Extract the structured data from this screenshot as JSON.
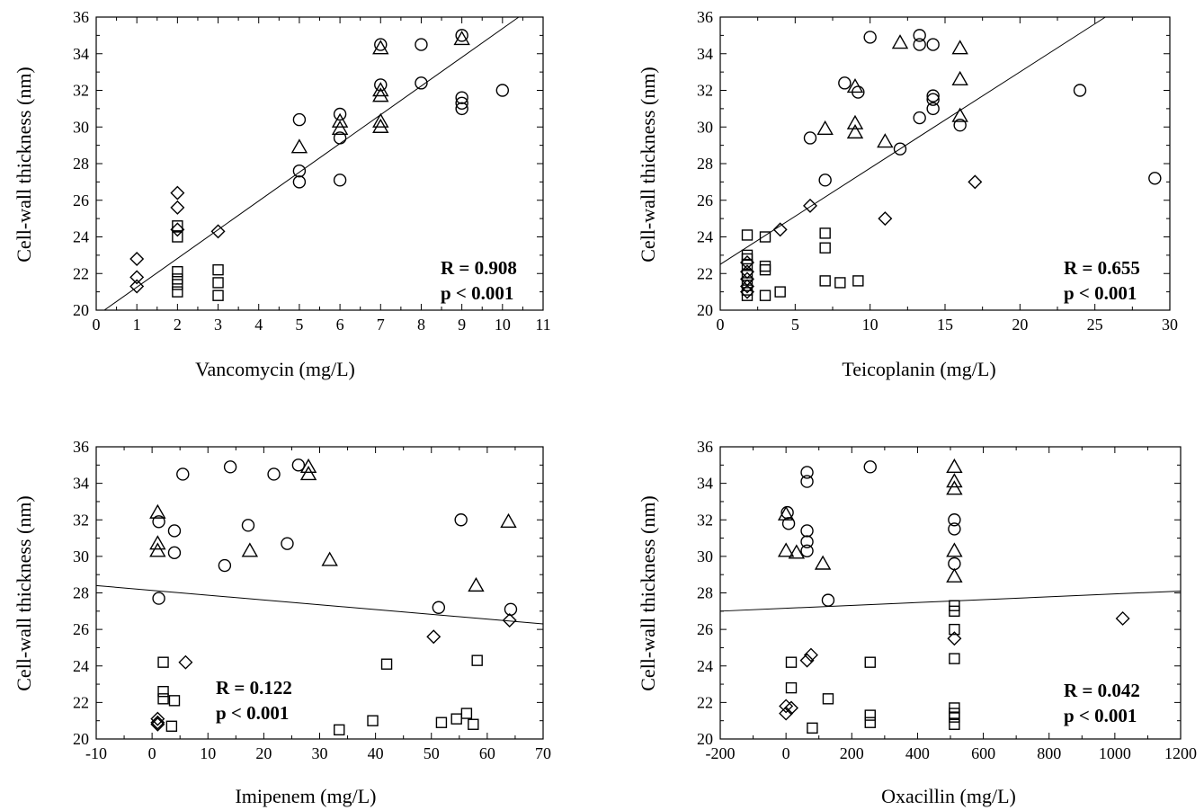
{
  "chart_data": [
    {
      "type": "scatter",
      "xlabel": "Vancomycin (mg/L)",
      "ylabel": "Cell-wall  thickness (nm)",
      "xlim": [
        0,
        11
      ],
      "ylim": [
        20,
        36
      ],
      "xticks": [
        "0",
        "1",
        "2",
        "3",
        "4",
        "5",
        "6",
        "7",
        "8",
        "9",
        "10",
        "11"
      ],
      "yticks": [
        "20",
        "22",
        "24",
        "26",
        "28",
        "30",
        "32",
        "34",
        "36"
      ],
      "stats": [
        "R = 0.908",
        "p < 0.001"
      ],
      "fit_line": [
        [
          0.2,
          20.0
        ],
        [
          10.4,
          36.0
        ]
      ],
      "series": [
        {
          "marker": "diamond",
          "points": [
            [
              1,
              22.8
            ],
            [
              1,
              21.8
            ],
            [
              1,
              21.3
            ],
            [
              2,
              26.4
            ],
            [
              2,
              25.6
            ],
            [
              2,
              24.4
            ],
            [
              3,
              24.3
            ]
          ]
        },
        {
          "marker": "square",
          "points": [
            [
              2,
              24.6
            ],
            [
              2,
              24.0
            ],
            [
              2,
              22.1
            ],
            [
              2,
              21.7
            ],
            [
              2,
              21.4
            ],
            [
              2,
              21.0
            ],
            [
              3,
              22.2
            ],
            [
              3,
              21.5
            ],
            [
              3,
              20.8
            ]
          ]
        },
        {
          "marker": "circle",
          "points": [
            [
              5,
              30.4
            ],
            [
              5,
              27.6
            ],
            [
              5,
              27.0
            ],
            [
              6,
              30.7
            ],
            [
              6,
              29.4
            ],
            [
              6,
              27.1
            ],
            [
              7,
              34.5
            ],
            [
              7,
              32.3
            ],
            [
              8,
              34.5
            ],
            [
              8,
              32.4
            ],
            [
              9,
              35.0
            ],
            [
              9,
              31.6
            ],
            [
              9,
              31.3
            ],
            [
              9,
              31.0
            ],
            [
              10,
              32.0
            ]
          ]
        },
        {
          "marker": "triangle",
          "points": [
            [
              5,
              28.9
            ],
            [
              6,
              30.3
            ],
            [
              6,
              29.9
            ],
            [
              7,
              34.3
            ],
            [
              7,
              32.0
            ],
            [
              7,
              31.7
            ],
            [
              7,
              30.3
            ],
            [
              7,
              30.0
            ],
            [
              9,
              34.8
            ]
          ]
        }
      ]
    },
    {
      "type": "scatter",
      "xlabel": "Teicoplanin (mg/L)",
      "ylabel": "Cell-wall  thickness (nm)",
      "xlim": [
        0,
        30
      ],
      "ylim": [
        20,
        36
      ],
      "xticks": [
        "0",
        "5",
        "10",
        "15",
        "20",
        "25",
        "30"
      ],
      "yticks": [
        "20",
        "22",
        "24",
        "26",
        "28",
        "30",
        "32",
        "34",
        "36"
      ],
      "stats": [
        "R = 0.655",
        "p  < 0.001"
      ],
      "fit_line": [
        [
          0,
          22.5
        ],
        [
          25.7,
          36.0
        ]
      ],
      "series": [
        {
          "marker": "diamond",
          "points": [
            [
              1.8,
              22.6
            ],
            [
              1.8,
              22.1
            ],
            [
              1.8,
              21.7
            ],
            [
              1.8,
              21.3
            ],
            [
              1.8,
              21.0
            ],
            [
              4,
              24.4
            ],
            [
              6,
              25.7
            ],
            [
              11,
              25.0
            ],
            [
              17,
              27.0
            ]
          ]
        },
        {
          "marker": "square",
          "points": [
            [
              1.8,
              24.1
            ],
            [
              1.8,
              23.0
            ],
            [
              1.8,
              22.8
            ],
            [
              1.8,
              22.5
            ],
            [
              1.8,
              21.9
            ],
            [
              1.8,
              21.5
            ],
            [
              1.8,
              21.1
            ],
            [
              1.8,
              20.8
            ],
            [
              3,
              24.0
            ],
            [
              3,
              22.4
            ],
            [
              3,
              22.2
            ],
            [
              3,
              20.8
            ],
            [
              4,
              21.0
            ],
            [
              7,
              24.2
            ],
            [
              7,
              23.4
            ],
            [
              7,
              21.6
            ],
            [
              8,
              21.5
            ],
            [
              9.2,
              21.6
            ]
          ]
        },
        {
          "marker": "circle",
          "points": [
            [
              6,
              29.4
            ],
            [
              7,
              27.1
            ],
            [
              8.3,
              32.4
            ],
            [
              9.2,
              31.9
            ],
            [
              10,
              34.9
            ],
            [
              12,
              28.8
            ],
            [
              13.3,
              35.0
            ],
            [
              13.3,
              34.5
            ],
            [
              13.3,
              30.5
            ],
            [
              14.2,
              34.5
            ],
            [
              14.2,
              31.7
            ],
            [
              14.2,
              31.5
            ],
            [
              14.2,
              31.0
            ],
            [
              16,
              30.1
            ],
            [
              24,
              32.0
            ],
            [
              29,
              27.2
            ]
          ]
        },
        {
          "marker": "triangle",
          "points": [
            [
              7,
              29.9
            ],
            [
              9,
              32.2
            ],
            [
              9,
              30.2
            ],
            [
              9,
              29.7
            ],
            [
              11,
              29.2
            ],
            [
              12,
              34.6
            ],
            [
              16,
              34.3
            ],
            [
              16,
              32.6
            ],
            [
              16,
              30.6
            ]
          ]
        }
      ]
    },
    {
      "type": "scatter",
      "xlabel": "Imipenem (mg/L)",
      "ylabel": "Cell-wall  thickness (nm)",
      "xlim": [
        -10,
        70
      ],
      "ylim": [
        20,
        36
      ],
      "xticks": [
        "-10",
        "0",
        "10",
        "20",
        "30",
        "40",
        "50",
        "60",
        "70"
      ],
      "yticks": [
        "20",
        "22",
        "24",
        "26",
        "28",
        "30",
        "32",
        "34",
        "36"
      ],
      "stats": [
        "R = 0.122",
        "p < 0.001"
      ],
      "fit_line": [
        [
          -10,
          28.4
        ],
        [
          70,
          26.3
        ]
      ],
      "series": [
        {
          "marker": "diamond",
          "points": [
            [
              1,
              21.1
            ],
            [
              1,
              20.9
            ],
            [
              1,
              20.8
            ],
            [
              6,
              24.2
            ],
            [
              50.4,
              25.6
            ],
            [
              64,
              26.5
            ]
          ]
        },
        {
          "marker": "square",
          "points": [
            [
              2,
              24.2
            ],
            [
              2,
              22.6
            ],
            [
              2,
              22.2
            ],
            [
              4,
              22.1
            ],
            [
              3.5,
              20.7
            ],
            [
              33.5,
              20.5
            ],
            [
              39.5,
              21.0
            ],
            [
              42,
              24.1
            ],
            [
              51.8,
              20.9
            ],
            [
              54.5,
              21.1
            ],
            [
              56.3,
              21.4
            ],
            [
              57.5,
              20.8
            ],
            [
              58.2,
              24.3
            ]
          ]
        },
        {
          "marker": "circle",
          "points": [
            [
              1.2,
              31.9
            ],
            [
              1.2,
              27.7
            ],
            [
              4,
              31.4
            ],
            [
              4,
              30.2
            ],
            [
              5.5,
              34.5
            ],
            [
              13,
              29.5
            ],
            [
              14,
              34.9
            ],
            [
              17.2,
              31.7
            ],
            [
              21.8,
              34.5
            ],
            [
              24.2,
              30.7
            ],
            [
              26.2,
              35.0
            ],
            [
              51.3,
              27.2
            ],
            [
              55.3,
              32.0
            ],
            [
              64.2,
              27.1
            ]
          ]
        },
        {
          "marker": "triangle",
          "points": [
            [
              1,
              32.4
            ],
            [
              1,
              30.7
            ],
            [
              1,
              30.3
            ],
            [
              17.5,
              30.3
            ],
            [
              28,
              34.9
            ],
            [
              28,
              34.5
            ],
            [
              31.8,
              29.8
            ],
            [
              58,
              28.4
            ],
            [
              63.8,
              31.9
            ]
          ]
        }
      ]
    },
    {
      "type": "scatter",
      "xlabel": "Oxacillin (mg/L)",
      "ylabel": "Cell-wall  thickness (nm)",
      "xlim": [
        -200,
        1200
      ],
      "ylim": [
        20,
        36
      ],
      "xticks": [
        "-200",
        "0",
        "200",
        "400",
        "600",
        "800",
        "1000",
        "1200"
      ],
      "yticks": [
        "20",
        "22",
        "24",
        "26",
        "28",
        "30",
        "32",
        "34",
        "36"
      ],
      "stats": [
        "R = 0.042",
        "p < 0.001"
      ],
      "fit_line": [
        [
          -200,
          27.0
        ],
        [
          1200,
          28.1
        ]
      ],
      "series": [
        {
          "marker": "diamond",
          "points": [
            [
              0,
              21.8
            ],
            [
              0,
              21.4
            ],
            [
              16,
              21.7
            ],
            [
              64,
              24.3
            ],
            [
              76,
              24.6
            ],
            [
              512,
              25.5
            ],
            [
              1024,
              26.6
            ]
          ]
        },
        {
          "marker": "square",
          "points": [
            [
              16,
              24.2
            ],
            [
              16,
              22.8
            ],
            [
              128,
              22.2
            ],
            [
              256,
              24.2
            ],
            [
              256,
              21.3
            ],
            [
              256,
              20.9
            ],
            [
              80,
              20.6
            ],
            [
              512,
              27.3
            ],
            [
              512,
              27.0
            ],
            [
              512,
              26.0
            ],
            [
              512,
              24.4
            ],
            [
              512,
              21.7
            ],
            [
              512,
              21.4
            ],
            [
              512,
              21.2
            ],
            [
              512,
              20.8
            ]
          ]
        },
        {
          "marker": "circle",
          "points": [
            [
              4,
              32.4
            ],
            [
              8,
              31.8
            ],
            [
              64,
              34.6
            ],
            [
              64,
              34.1
            ],
            [
              64,
              31.4
            ],
            [
              64,
              30.8
            ],
            [
              64,
              30.3
            ],
            [
              128,
              27.6
            ],
            [
              256,
              34.9
            ],
            [
              512,
              32.0
            ],
            [
              512,
              31.5
            ],
            [
              512,
              29.6
            ]
          ]
        },
        {
          "marker": "triangle",
          "points": [
            [
              0,
              32.3
            ],
            [
              0,
              30.3
            ],
            [
              32,
              30.2
            ],
            [
              112,
              29.6
            ],
            [
              512,
              34.9
            ],
            [
              512,
              34.1
            ],
            [
              512,
              33.7
            ],
            [
              512,
              30.3
            ],
            [
              512,
              28.9
            ]
          ]
        }
      ]
    }
  ]
}
